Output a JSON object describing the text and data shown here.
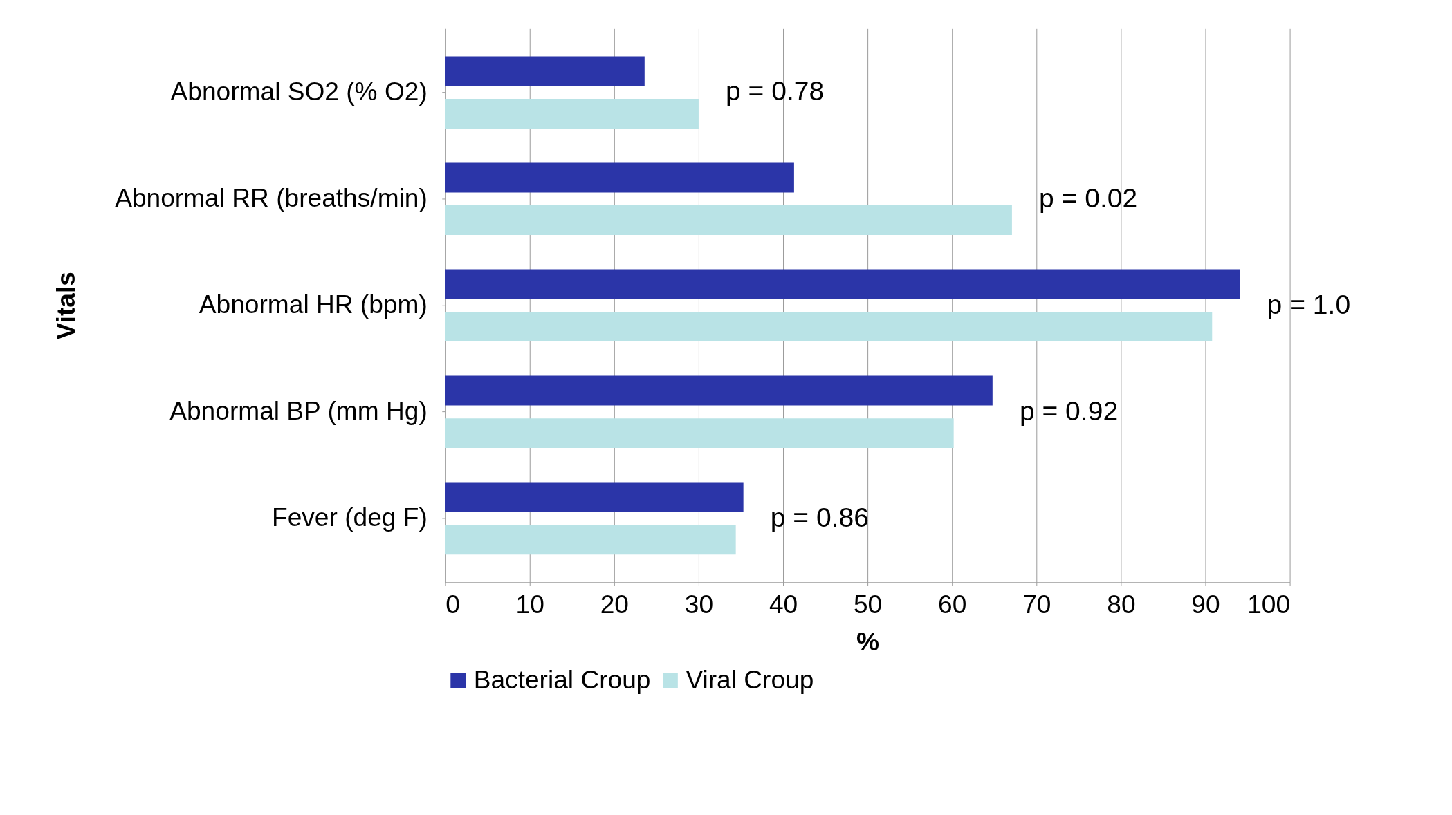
{
  "chart_data": {
    "type": "bar",
    "orientation": "horizontal",
    "xlabel": "%",
    "ylabel": "Vitals",
    "categories": [
      "Abnormal SO2 (% O2)",
      "Abnormal RR (breaths/min)",
      "Abnormal HR (bpm)",
      "Abnormal BP (mm Hg)",
      "Fever (deg F)"
    ],
    "series": [
      {
        "name": "Bacterial Croup",
        "color": "#2b35a8",
        "values": [
          23.6,
          41.3,
          94.1,
          64.8,
          35.3
        ]
      },
      {
        "name": "Viral Croup",
        "color": "#b9e3e6",
        "values": [
          30.0,
          67.1,
          90.8,
          60.2,
          34.4
        ]
      }
    ],
    "xlim": [
      0,
      100
    ],
    "xticks": [
      0,
      10,
      20,
      30,
      40,
      50,
      60,
      70,
      80,
      90,
      100
    ],
    "grid": "x",
    "legend": "bottom",
    "annotations": [
      "p = 0.78",
      "p = 0.02",
      "p = 1.0",
      "p = 0.92",
      "p = 0.86"
    ]
  }
}
